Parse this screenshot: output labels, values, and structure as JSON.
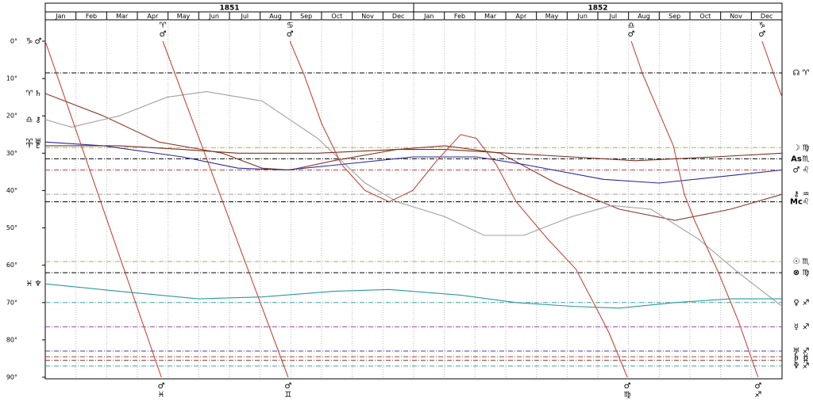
{
  "header": {
    "years": [
      "1851",
      "1852"
    ],
    "months": [
      "Jan",
      "Feb",
      "Mar",
      "Apr",
      "May",
      "Jun",
      "Jul",
      "Aug",
      "Sep",
      "Oct",
      "Nov",
      "Dec",
      "Jan",
      "Feb",
      "Mar",
      "Apr",
      "May",
      "Jun",
      "Jul",
      "Aug",
      "Sep",
      "Oct",
      "Nov",
      "Dec"
    ]
  },
  "chart_data": {
    "type": "line",
    "xlim": [
      0,
      24
    ],
    "ylim": [
      0,
      90
    ],
    "yticks": [
      {
        "value": 0,
        "label": "0°"
      },
      {
        "value": 10,
        "label": "10°"
      },
      {
        "value": 20,
        "label": "20°"
      },
      {
        "value": 30,
        "label": "30°"
      },
      {
        "value": 40,
        "label": "40°"
      },
      {
        "value": 50,
        "label": "50°"
      },
      {
        "value": 60,
        "label": "60°"
      },
      {
        "value": 70,
        "label": "70°"
      },
      {
        "value": 80,
        "label": "80°"
      },
      {
        "value": 90,
        "label": "90°"
      }
    ],
    "series": [
      {
        "sign": "♈",
        "name": "♄",
        "sign_color": "#d40000",
        "color": "#8b3a2a",
        "x": [
          0,
          1.89,
          3.7,
          5.77,
          7.06,
          7.97,
          9.39,
          11.46,
          13.01,
          14.82,
          16.63,
          18.7,
          20.51,
          22.32,
          24
        ],
        "values": [
          14,
          20,
          27,
          30,
          34,
          34.5,
          32,
          29,
          28,
          30,
          38,
          45,
          48,
          45,
          41
        ]
      },
      {
        "sign": "♎",
        "name": "⚷",
        "sign_color": "#00a0a0",
        "color": "#a0a0a0",
        "x": [
          0,
          0.85,
          2.41,
          3.96,
          5.25,
          7.06,
          8.87,
          10.42,
          11.46,
          13.01,
          14.3,
          15.59,
          17.15,
          18.44,
          19.73,
          21.28,
          22.58,
          24
        ],
        "values": [
          21,
          23,
          20,
          15,
          13.5,
          16,
          26,
          38,
          43,
          47,
          52,
          52,
          47,
          44,
          45,
          53,
          62,
          71
        ]
      },
      {
        "sign": "♈",
        "name": "♅",
        "sign_color": "#d40000",
        "color": "#2a2a9a",
        "x": [
          0,
          1.89,
          4.47,
          6.28,
          7.84,
          9.65,
          11.97,
          14.04,
          15.59,
          18.18,
          19.99,
          22.32,
          24
        ],
        "values": [
          27,
          28,
          31,
          34,
          34.5,
          33,
          31,
          31,
          33,
          37,
          38,
          36,
          34.5
        ]
      },
      {
        "sign": "♈",
        "name": "♇",
        "sign_color": "#d40000",
        "color": "#7a3020",
        "x": [
          0,
          2.41,
          4.47,
          6.28,
          8.87,
          11.46,
          13.01,
          15.08,
          17.15,
          19.22,
          21.8,
          24
        ],
        "values": [
          28,
          28,
          29,
          30,
          30,
          29,
          29,
          30,
          31,
          32,
          31,
          30
        ]
      },
      {
        "sign": "♓",
        "name": "♆",
        "sign_color": "#0000c0",
        "color": "#2a9a9a",
        "x": [
          0,
          2.41,
          4.99,
          7.06,
          9.39,
          11.2,
          13.53,
          15.34,
          17.15,
          18.7,
          20.51,
          22.32,
          24
        ],
        "values": [
          65,
          67,
          69,
          68.5,
          67,
          66.5,
          68,
          70,
          71,
          71.5,
          70,
          69,
          69
        ]
      },
      {
        "sign": "♑",
        "name": "♂",
        "sign_color": "#00a000",
        "color": "#c04a3a",
        "x": [
          0,
          3.78
        ],
        "values": [
          0,
          90
        ]
      },
      {
        "color": "#c04a3a",
        "x": [
          3.83,
          7.91
        ],
        "values": [
          0,
          90
        ]
      },
      {
        "color": "#c04a3a",
        "x": [
          7.97,
          8.43,
          9.0,
          9.65,
          10.42,
          11.2,
          11.97,
          12.75,
          13.53,
          14.04,
          14.69,
          15.34,
          16.37,
          17.28,
          17.92,
          18.36,
          18.96
        ],
        "values": [
          0,
          9,
          22,
          33,
          40,
          43,
          40,
          32,
          25,
          26,
          33,
          43,
          53,
          61,
          71,
          78,
          90
        ]
      },
      {
        "color": "#c04a3a",
        "x": [
          19.09,
          19.47,
          20.46,
          20.82,
          21.15,
          21.93,
          22.58,
          23.22
        ],
        "values": [
          0,
          9,
          28,
          41,
          48,
          62,
          75,
          90
        ]
      },
      {
        "color": "#c04a3a",
        "x": [
          23.35,
          23.74,
          24.0
        ],
        "values": [
          0,
          9,
          15
        ]
      }
    ],
    "top_labels": [
      {
        "x": 3.83,
        "sign": "♈",
        "planet": "♂",
        "sign_color": "#d40000"
      },
      {
        "x": 7.97,
        "sign": "♋",
        "planet": "♂",
        "sign_color": "#0000c0"
      },
      {
        "x": 19.09,
        "sign": "♎",
        "planet": "♂",
        "sign_color": "#00a0a0"
      },
      {
        "x": 23.35,
        "sign": "♑",
        "planet": "♂",
        "sign_color": "#00a000"
      }
    ],
    "bottom_labels": [
      {
        "x": 3.78,
        "planet": "♂",
        "sign": "♓",
        "sign_color": "#0000c0"
      },
      {
        "x": 7.91,
        "planet": "♂",
        "sign": "♊",
        "sign_color": "#00a0a0"
      },
      {
        "x": 18.96,
        "planet": "♂",
        "sign": "♍",
        "sign_color": "#00a000"
      },
      {
        "x": 23.22,
        "planet": "♂",
        "sign": "♐",
        "sign_color": "#d40000"
      }
    ],
    "reference_lines": [
      {
        "value": 8.5,
        "planet": "☊",
        "sign": "♈",
        "color": "#000000",
        "planet_color": "#000000",
        "sign_color": "#d40000"
      },
      {
        "value": 28.5,
        "planet": "☽",
        "sign": "♍",
        "color": "#b0b040",
        "planet_color": "#b09000",
        "sign_color": "#00a000"
      },
      {
        "value": 31.5,
        "planet": "As",
        "sign": "♏",
        "color": "#000000",
        "planet_color": "#000000",
        "sign_color": "#0000c0"
      },
      {
        "value": 34.5,
        "planet": "♂",
        "sign": "♌",
        "color": "#c04040",
        "planet_color": "#d40000",
        "sign_color": "#d40000"
      },
      {
        "value": 41,
        "planet": "⚷",
        "sign": "♒",
        "color": "#a0a0a0",
        "planet_color": "#808080",
        "sign_color": "#00a0a0"
      },
      {
        "value": 43,
        "planet": "Mc",
        "sign": "♌",
        "color": "#000000",
        "planet_color": "#000000",
        "sign_color": "#d40000"
      },
      {
        "value": 59,
        "planet": "☉",
        "sign": "♏",
        "color": "#b0b040",
        "planet_color": "#b09000",
        "sign_color": "#0000c0"
      },
      {
        "value": 62,
        "planet": "⊗",
        "sign": "♍",
        "color": "#000000",
        "planet_color": "#000000",
        "sign_color": "#00a000"
      },
      {
        "value": 70,
        "planet": "♀",
        "sign": "♐",
        "color": "#40a0a0",
        "planet_color": "#00a0a0",
        "sign_color": "#d40000"
      },
      {
        "value": 76.5,
        "planet": "☿",
        "sign": "♐",
        "color": "#a040a0",
        "planet_color": "#a000a0",
        "sign_color": "#d40000"
      },
      {
        "value": 83,
        "planet": "♅",
        "sign": "♐",
        "color": "#4040a0",
        "planet_color": "#0000c0",
        "sign_color": "#d40000"
      },
      {
        "value": 84.5,
        "planet": "♄",
        "sign": "♓",
        "color": "#a04040",
        "planet_color": "#a00000",
        "sign_color": "#0000c0"
      },
      {
        "value": 85.5,
        "planet": "♇",
        "sign": "♓",
        "color": "#803020",
        "planet_color": "#803020",
        "sign_color": "#0000c0"
      },
      {
        "value": 87,
        "planet": "♆",
        "sign": "♐",
        "color": "#40a0a0",
        "planet_color": "#00a0a0",
        "sign_color": "#d40000"
      }
    ]
  }
}
